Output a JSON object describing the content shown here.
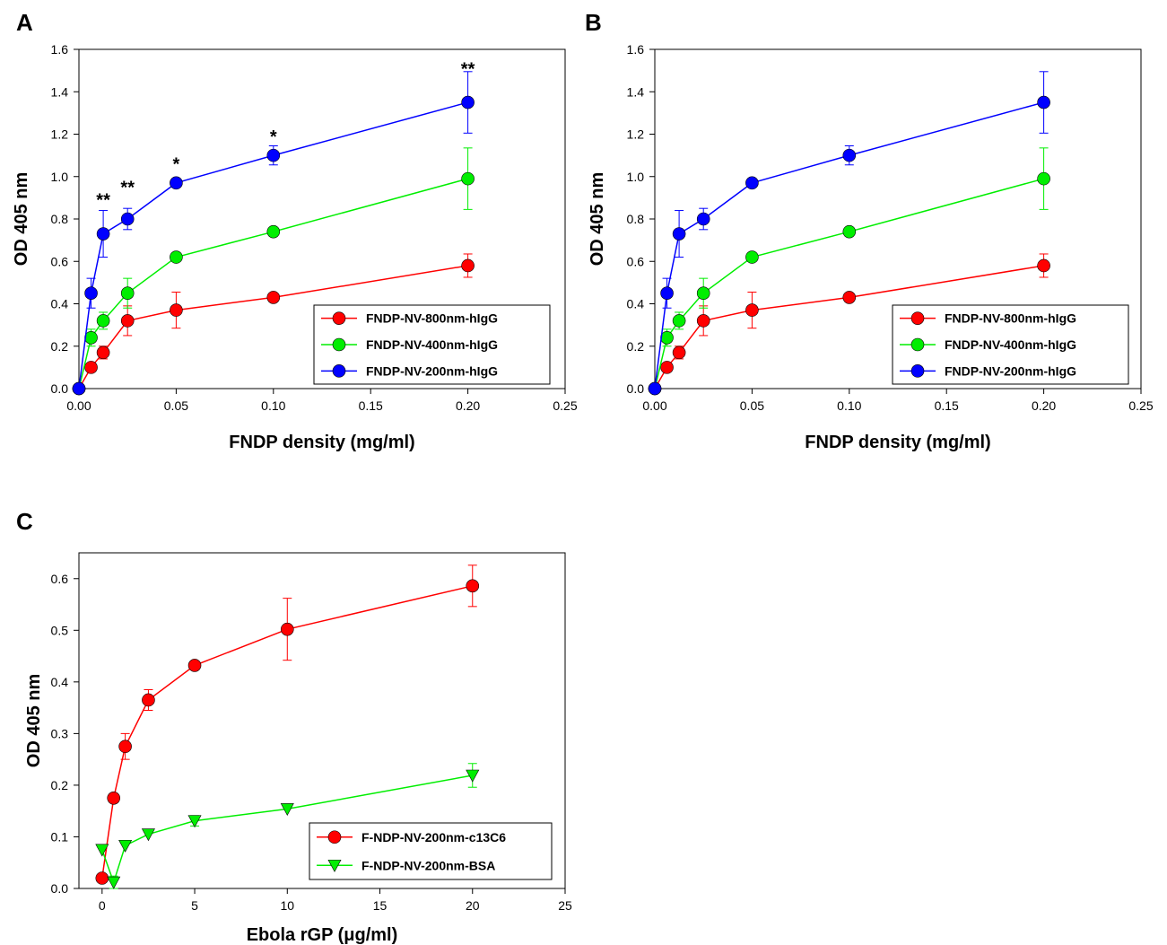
{
  "chart_data": [
    {
      "panel": "A",
      "type": "line",
      "xlabel": "FNDP density (mg/ml)",
      "ylabel": "OD 405 nm",
      "xlim": [
        0,
        0.25
      ],
      "ylim": [
        0,
        1.6
      ],
      "xticks": [
        "0.00",
        "0.05",
        "0.10",
        "0.15",
        "0.20",
        "0.25"
      ],
      "yticks": [
        "0.0",
        "0.2",
        "0.4",
        "0.6",
        "0.8",
        "1.0",
        "1.2",
        "1.4",
        "1.6"
      ],
      "legend_position": "bottom-right",
      "series": [
        {
          "name": "FNDP-NV-800nm-hIgG",
          "color": "#ff0000",
          "marker": "circle",
          "x": [
            0,
            0.00625,
            0.0125,
            0.025,
            0.05,
            0.1,
            0.2
          ],
          "y": [
            0.0,
            0.1,
            0.17,
            0.32,
            0.37,
            0.43,
            0.58
          ],
          "err": [
            0.0,
            0.02,
            0.03,
            0.07,
            0.085,
            0.02,
            0.055
          ]
        },
        {
          "name": "FNDP-NV-400nm-hIgG",
          "color": "#00ee00",
          "marker": "circle",
          "x": [
            0,
            0.00625,
            0.0125,
            0.025,
            0.05,
            0.1,
            0.2
          ],
          "y": [
            0.0,
            0.24,
            0.32,
            0.45,
            0.62,
            0.74,
            0.99
          ],
          "err": [
            0.0,
            0.04,
            0.04,
            0.07,
            0.02,
            0.02,
            0.145
          ]
        },
        {
          "name": "FNDP-NV-200nm-hIgG",
          "color": "#0000ff",
          "marker": "circle",
          "x": [
            0,
            0.00625,
            0.0125,
            0.025,
            0.05,
            0.1,
            0.2
          ],
          "y": [
            0.0,
            0.45,
            0.73,
            0.8,
            0.97,
            1.1,
            1.35
          ],
          "err": [
            0.0,
            0.07,
            0.11,
            0.05,
            0.02,
            0.045,
            0.145
          ]
        }
      ],
      "annotations": [
        {
          "text": "**",
          "x": 0.0125,
          "y": 0.89
        },
        {
          "text": "**",
          "x": 0.025,
          "y": 0.95
        },
        {
          "text": "*",
          "x": 0.05,
          "y": 1.06
        },
        {
          "text": "*",
          "x": 0.1,
          "y": 1.19
        },
        {
          "text": "**",
          "x": 0.2,
          "y": 1.51
        }
      ]
    },
    {
      "panel": "B",
      "type": "line",
      "xlabel": "FNDP density (mg/ml)",
      "ylabel": "OD 405 nm",
      "xlim": [
        0,
        0.25
      ],
      "ylim": [
        0,
        1.6
      ],
      "xticks": [
        "0.00",
        "0.05",
        "0.10",
        "0.15",
        "0.20",
        "0.25"
      ],
      "yticks": [
        "0.0",
        "0.2",
        "0.4",
        "0.6",
        "0.8",
        "1.0",
        "1.2",
        "1.4",
        "1.6"
      ],
      "legend_position": "bottom-right",
      "series": [
        {
          "name": "FNDP-NV-800nm-hIgG",
          "color": "#ff0000",
          "marker": "circle",
          "x": [
            0,
            0.00625,
            0.0125,
            0.025,
            0.05,
            0.1,
            0.2
          ],
          "y": [
            0.0,
            0.1,
            0.17,
            0.32,
            0.37,
            0.43,
            0.58
          ],
          "err": [
            0.0,
            0.02,
            0.03,
            0.07,
            0.085,
            0.02,
            0.055
          ]
        },
        {
          "name": "FNDP-NV-400nm-hIgG",
          "color": "#00ee00",
          "marker": "circle",
          "x": [
            0,
            0.00625,
            0.0125,
            0.025,
            0.05,
            0.1,
            0.2
          ],
          "y": [
            0.0,
            0.24,
            0.32,
            0.45,
            0.62,
            0.74,
            0.99
          ],
          "err": [
            0.0,
            0.04,
            0.04,
            0.07,
            0.02,
            0.02,
            0.145
          ]
        },
        {
          "name": "FNDP-NV-200nm-hIgG",
          "color": "#0000ff",
          "marker": "circle",
          "x": [
            0,
            0.00625,
            0.0125,
            0.025,
            0.05,
            0.1,
            0.2
          ],
          "y": [
            0.0,
            0.45,
            0.73,
            0.8,
            0.97,
            1.1,
            1.35
          ],
          "err": [
            0.0,
            0.07,
            0.11,
            0.05,
            0.02,
            0.045,
            0.145
          ]
        }
      ],
      "annotations": []
    },
    {
      "panel": "C",
      "type": "line",
      "xlabel": "Ebola rGP (μg/ml)",
      "ylabel": "OD 405 nm",
      "xlim": [
        -1.25,
        25
      ],
      "ylim": [
        0,
        0.65
      ],
      "xticks": [
        "0",
        "5",
        "10",
        "15",
        "20",
        "25"
      ],
      "yticks": [
        "0.0",
        "0.1",
        "0.2",
        "0.3",
        "0.4",
        "0.5",
        "0.6"
      ],
      "legend_position": "bottom-right",
      "series": [
        {
          "name": "F-NDP-NV-200nm-c13C6",
          "color": "#ff0000",
          "marker": "circle",
          "x": [
            0,
            0.625,
            1.25,
            2.5,
            5,
            10,
            20
          ],
          "y": [
            0.02,
            0.175,
            0.275,
            0.365,
            0.432,
            0.502,
            0.586
          ],
          "err": [
            0.0,
            0.0,
            0.025,
            0.02,
            0.0,
            0.06,
            0.04
          ]
        },
        {
          "name": "F-NDP-NV-200nm-BSA",
          "color": "#00ee00",
          "marker": "triangle-down",
          "x": [
            0,
            0.625,
            1.25,
            2.5,
            5,
            10,
            20
          ],
          "y": [
            0.075,
            0.012,
            0.083,
            0.105,
            0.131,
            0.154,
            0.219
          ],
          "err": [
            0.0,
            0.012,
            0.0,
            0.0,
            0.01,
            0.0,
            0.023
          ]
        }
      ],
      "annotations": []
    }
  ],
  "panels": {
    "A": {
      "letter": "A"
    },
    "B": {
      "letter": "B"
    },
    "C": {
      "letter": "C"
    }
  }
}
